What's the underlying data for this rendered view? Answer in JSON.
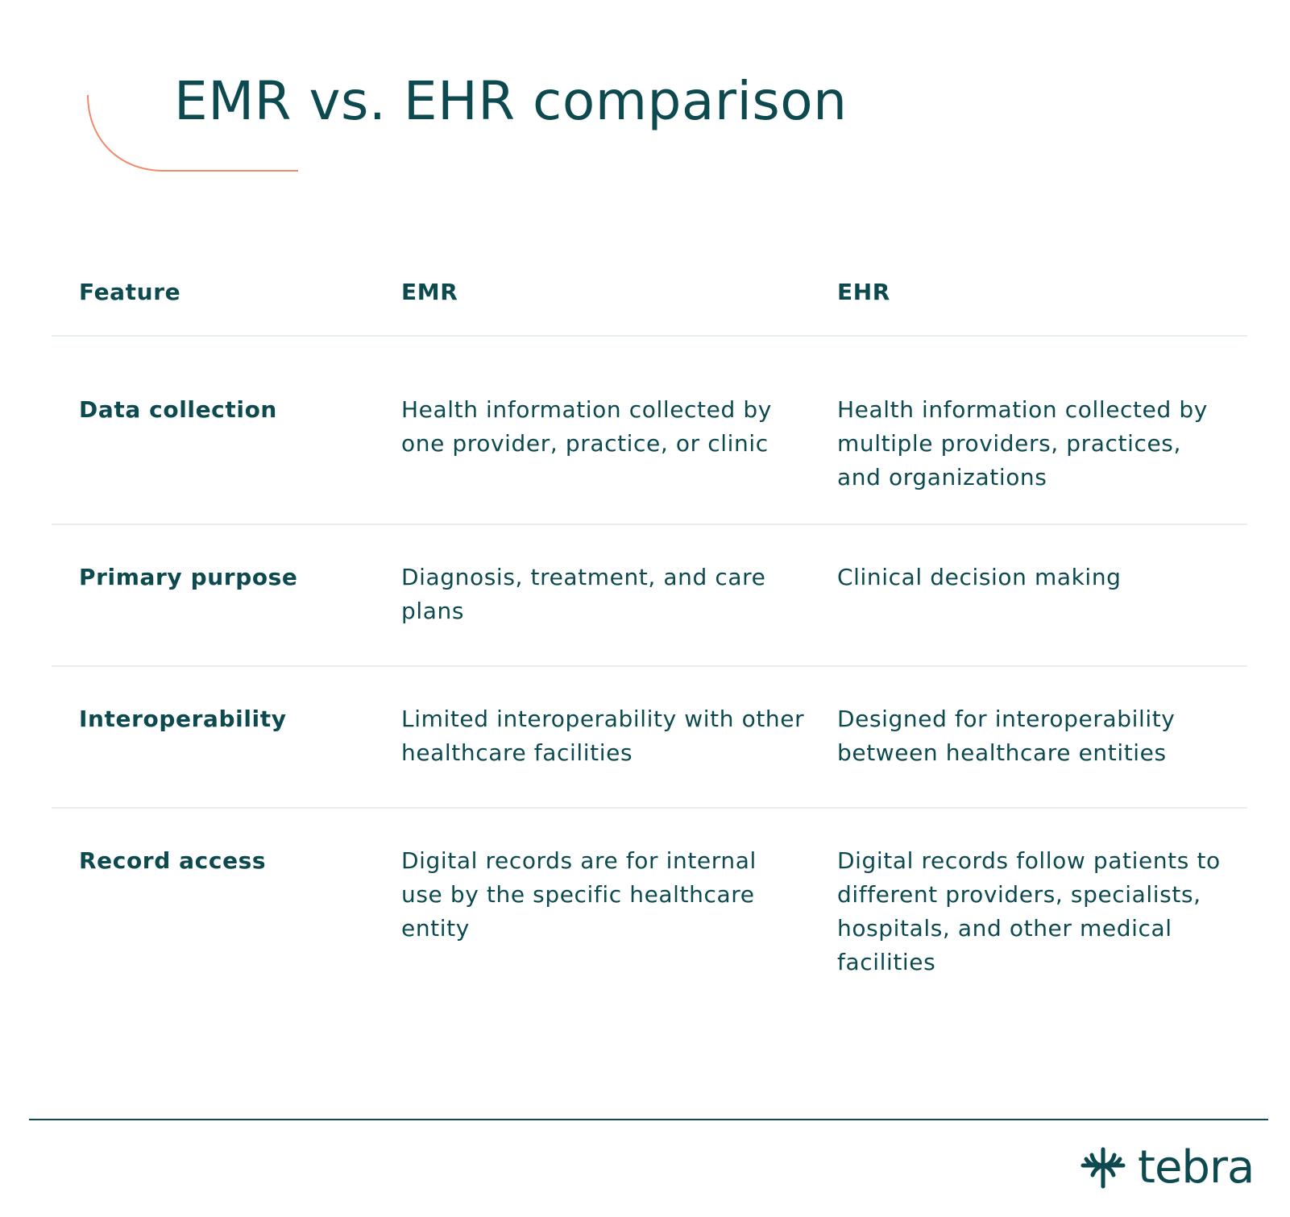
{
  "title": "EMR vs. EHR comparison",
  "colors": {
    "text": "#0c4a4f",
    "accent": "#f08a6c",
    "divider": "#e6eeee"
  },
  "table": {
    "headers": [
      "Feature",
      "EMR",
      "EHR"
    ],
    "rows": [
      {
        "feature": "Data collection",
        "emr": "Health information collected by one provider, practice, or clinic",
        "ehr": "Health information collected by multiple providers, practices, and organizations"
      },
      {
        "feature": "Primary purpose",
        "emr": "Diagnosis, treatment, and care plans",
        "ehr": "Clinical decision making"
      },
      {
        "feature": "Interoperability",
        "emr": "Limited interoperability with other healthcare facilities",
        "ehr": "Designed for interoperability between healthcare entities"
      },
      {
        "feature": "Record access",
        "emr": "Digital records are for internal use by the specific healthcare entity",
        "ehr": "Digital records follow patients to different providers, specialists, hospitals, and other medical facilities"
      }
    ]
  },
  "logo": {
    "text": "tebra",
    "icon": "tebra-logo-icon"
  }
}
